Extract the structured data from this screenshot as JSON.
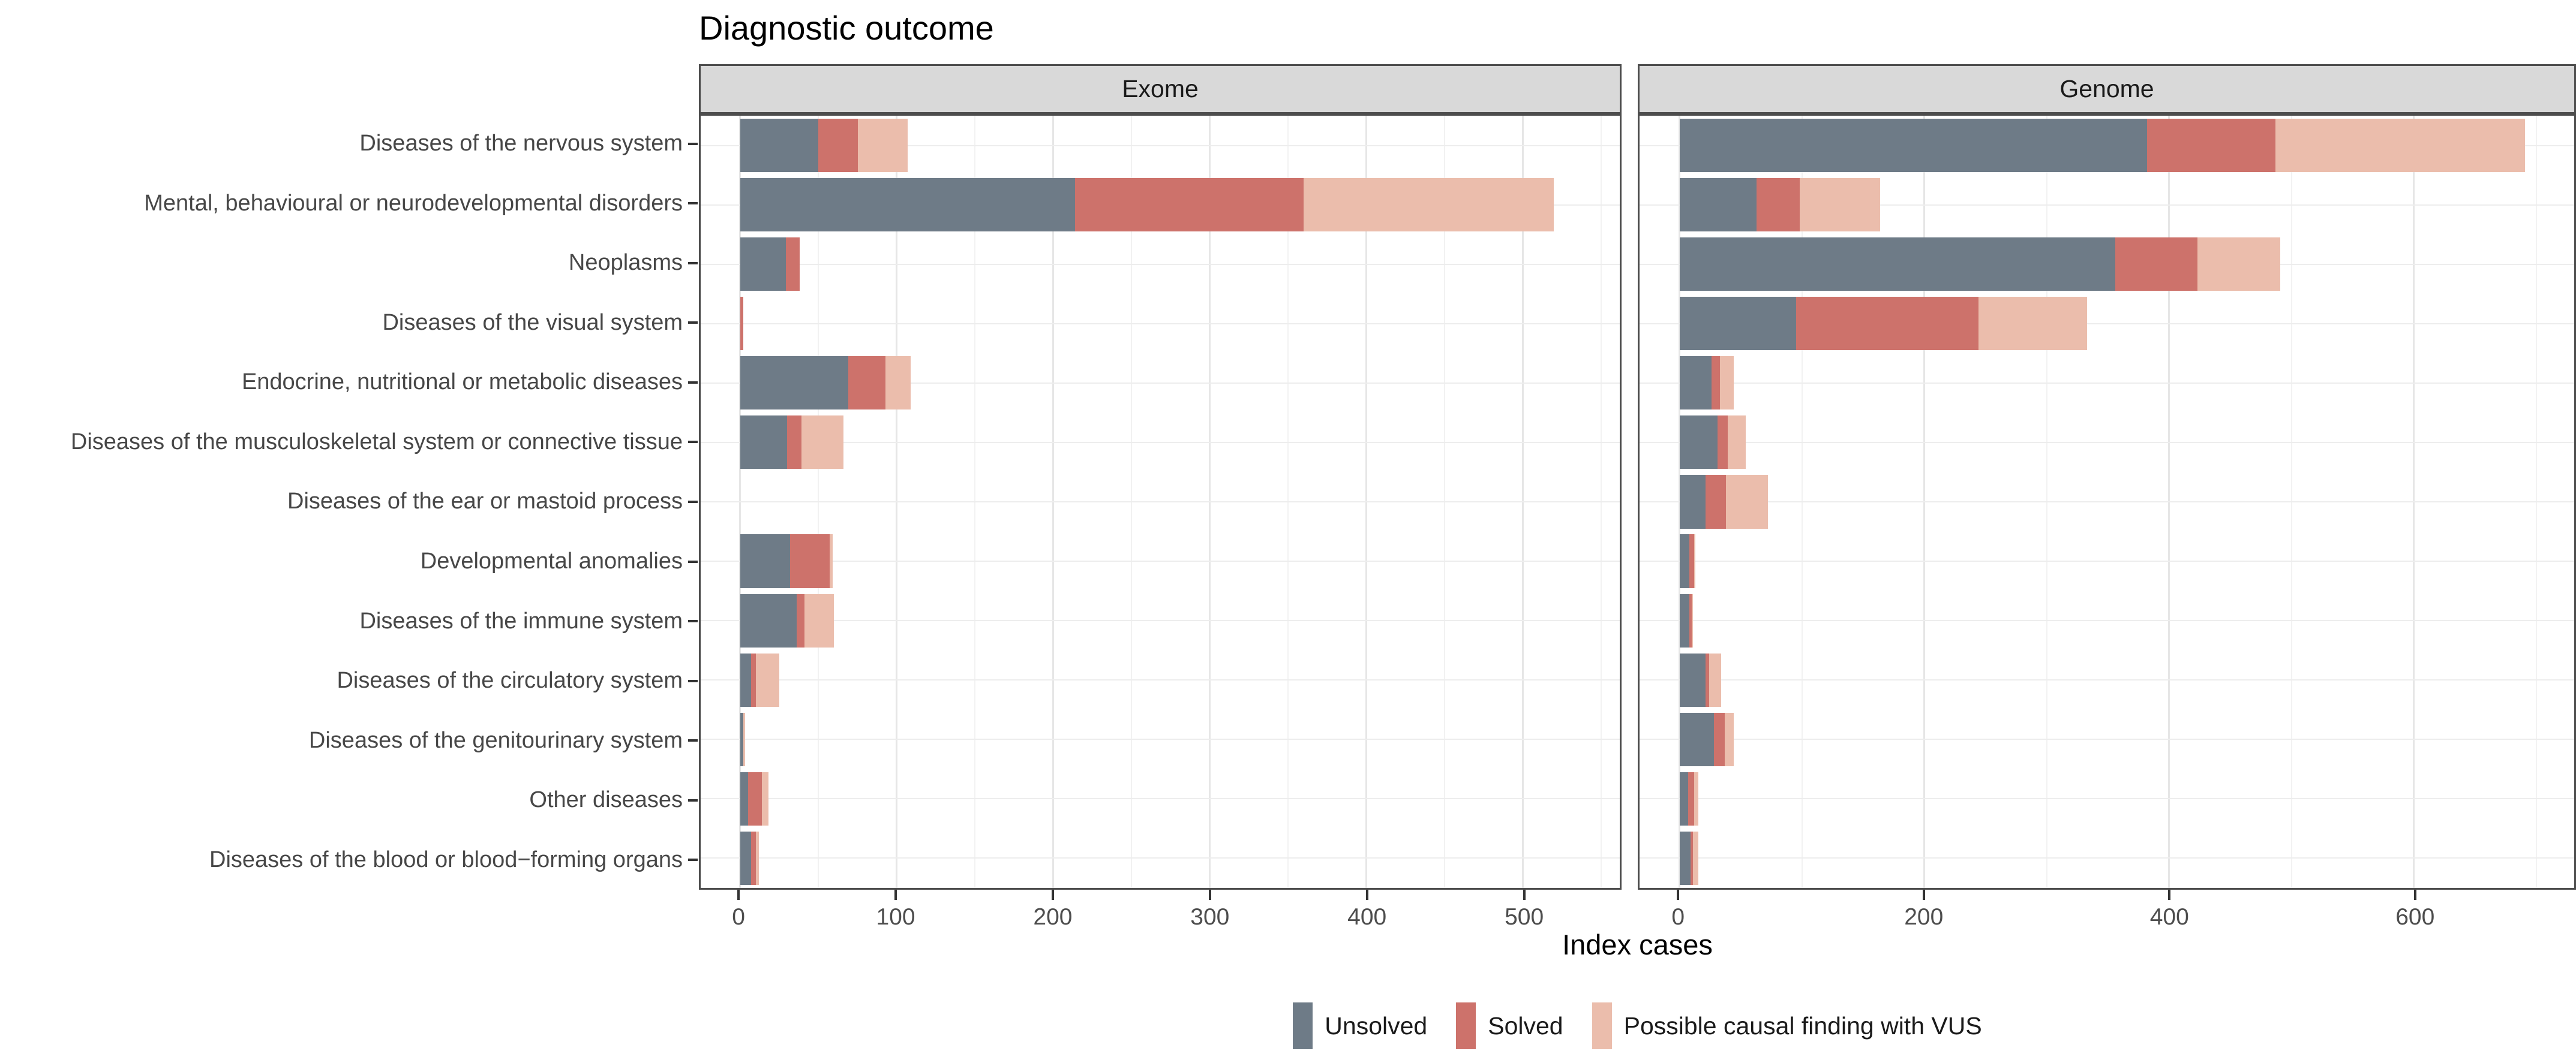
{
  "title": "Diagnostic outcome",
  "x_axis_title": "Index cases",
  "colors": {
    "unsolved": "#6e7b87",
    "solved": "#cd726b",
    "vus": "#ebbdac",
    "strip_bg": "#d9d9d9",
    "panel_border": "#4d4d4d",
    "grid_major": "#e6e6e6",
    "grid_minor": "#f2f2f2"
  },
  "legend": {
    "items": [
      {
        "label": "Unsolved",
        "color": "#6e7b87"
      },
      {
        "label": "Solved",
        "color": "#cd726b"
      },
      {
        "label": "Possible causal finding with VUS",
        "color": "#ebbdac"
      }
    ]
  },
  "chart_data": {
    "type": "bar",
    "orientation": "horizontal",
    "stacked": true,
    "title": "Diagnostic outcome",
    "xlabel": "Index cases",
    "ylabel": "",
    "grid": true,
    "legend_position": "bottom",
    "categories": [
      "Diseases of the nervous system",
      "Mental, behavioural or neurodevelopmental disorders",
      "Neoplasms",
      "Diseases of the visual system",
      "Endocrine, nutritional or metabolic diseases",
      "Diseases of the musculoskeletal system or connective tissue",
      "Diseases of the ear or mastoid process",
      "Developmental anomalies",
      "Diseases of the immune system",
      "Diseases of the circulatory system",
      "Diseases of the genitourinary system",
      "Other diseases",
      "Diseases of the blood or blood−forming organs"
    ],
    "facets": [
      {
        "label": "Exome",
        "xlim": [
          0,
          562
        ],
        "ticks": [
          0,
          100,
          200,
          300,
          400,
          500
        ],
        "minor_step": 50,
        "series": [
          {
            "name": "Unsolved",
            "values": [
              50,
              214,
              29,
              0,
              69,
              30,
              0,
              32,
              36,
              7,
              2,
              5,
              7
            ]
          },
          {
            "name": "Solved",
            "values": [
              25,
              146,
              9,
              2,
              24,
              9,
              0,
              25,
              5,
              3,
              0,
              9,
              3
            ]
          },
          {
            "name": "Possible causal finding with VUS",
            "values": [
              32,
              160,
              0,
              0,
              16,
              27,
              0,
              2,
              19,
              15,
              1,
              4,
              2
            ]
          }
        ]
      },
      {
        "label": "Genome",
        "xlim": [
          0,
          731
        ],
        "ticks": [
          0,
          200,
          400,
          600
        ],
        "minor_step": 100,
        "series": [
          {
            "name": "Unsolved",
            "values": [
              382,
              63,
              356,
              95,
              26,
              31,
              21,
              8,
              8,
              21,
              28,
              7,
              9
            ]
          },
          {
            "name": "Solved",
            "values": [
              105,
              35,
              67,
              149,
              7,
              8,
              17,
              4,
              2,
              3,
              9,
              5,
              2
            ]
          },
          {
            "name": "Possible causal finding with VUS",
            "values": [
              204,
              66,
              68,
              89,
              11,
              15,
              34,
              1,
              1,
              10,
              7,
              3,
              4
            ]
          }
        ]
      }
    ]
  }
}
